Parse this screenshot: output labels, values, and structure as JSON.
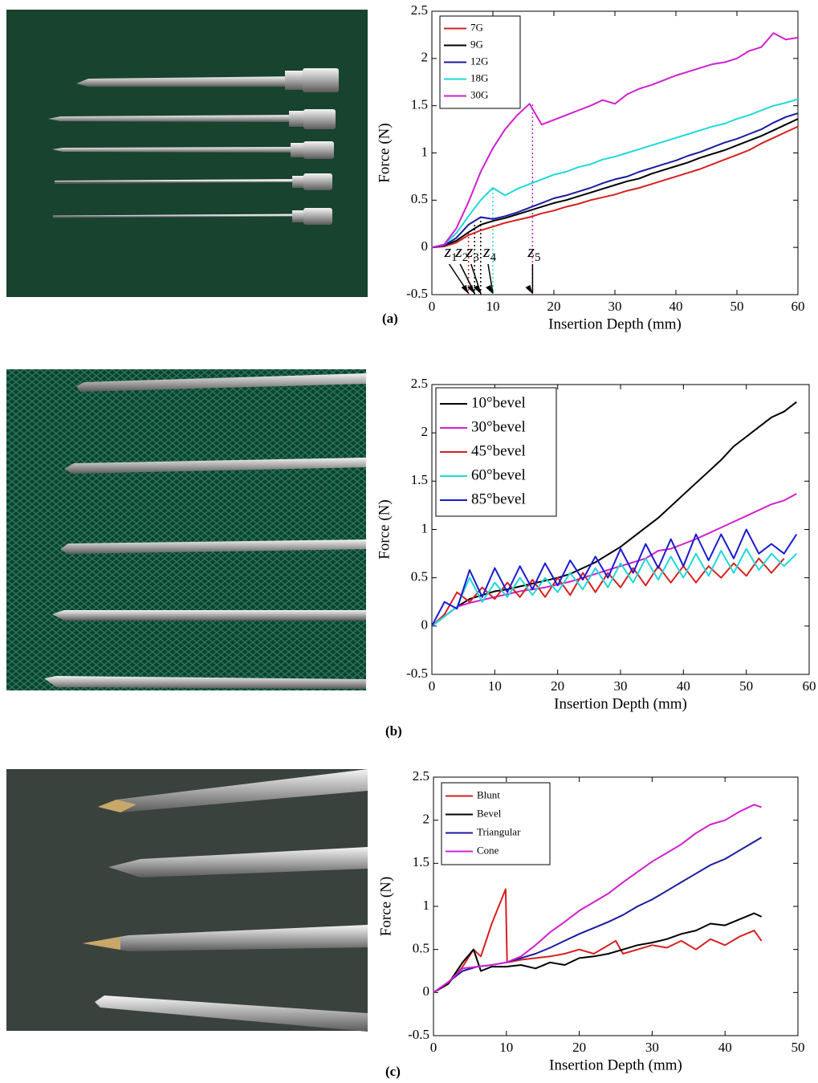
{
  "chart_data": [
    {
      "type": "line",
      "panel_label": "(a)",
      "xlabel": "Insertion Depth (mm)",
      "ylabel": "Force (N)",
      "xlim": [
        0,
        60
      ],
      "ylim": [
        -0.5,
        2.5
      ],
      "xticks": [
        0,
        10,
        20,
        30,
        40,
        50,
        60
      ],
      "yticks": [
        -0.5,
        0,
        0.5,
        1,
        1.5,
        2,
        2.5
      ],
      "legend": "upper left",
      "x": [
        0,
        2,
        4,
        6,
        8,
        10,
        12,
        14,
        16,
        18,
        20,
        22,
        24,
        26,
        28,
        30,
        32,
        34,
        36,
        38,
        40,
        42,
        44,
        46,
        48,
        50,
        52,
        54,
        56,
        58,
        60
      ],
      "series": [
        {
          "name": "7G",
          "color": "#d62020",
          "values": [
            0,
            0.01,
            0.05,
            0.13,
            0.18,
            0.22,
            0.26,
            0.29,
            0.32,
            0.36,
            0.39,
            0.43,
            0.46,
            0.5,
            0.53,
            0.56,
            0.6,
            0.63,
            0.67,
            0.71,
            0.75,
            0.79,
            0.83,
            0.88,
            0.93,
            0.98,
            1.03,
            1.1,
            1.16,
            1.22,
            1.28
          ]
        },
        {
          "name": "9G",
          "color": "#000000",
          "values": [
            0,
            0.02,
            0.07,
            0.16,
            0.24,
            0.28,
            0.31,
            0.35,
            0.39,
            0.43,
            0.47,
            0.5,
            0.54,
            0.58,
            0.62,
            0.66,
            0.7,
            0.73,
            0.78,
            0.82,
            0.86,
            0.9,
            0.95,
            0.99,
            1.03,
            1.08,
            1.13,
            1.18,
            1.24,
            1.3,
            1.36
          ]
        },
        {
          "name": "12G",
          "color": "#1a1aa0",
          "values": [
            0,
            0.02,
            0.1,
            0.24,
            0.32,
            0.3,
            0.33,
            0.37,
            0.42,
            0.47,
            0.52,
            0.55,
            0.59,
            0.63,
            0.68,
            0.72,
            0.75,
            0.8,
            0.84,
            0.88,
            0.92,
            0.97,
            1.01,
            1.06,
            1.11,
            1.15,
            1.2,
            1.25,
            1.32,
            1.38,
            1.42
          ]
        },
        {
          "name": "18G",
          "color": "#20d8d8",
          "values": [
            0,
            0.03,
            0.15,
            0.33,
            0.5,
            0.63,
            0.55,
            0.62,
            0.67,
            0.72,
            0.77,
            0.8,
            0.85,
            0.88,
            0.93,
            0.96,
            1.0,
            1.04,
            1.08,
            1.12,
            1.16,
            1.2,
            1.24,
            1.28,
            1.31,
            1.36,
            1.4,
            1.45,
            1.5,
            1.53,
            1.57
          ]
        },
        {
          "name": "30G",
          "color": "#d020d0",
          "values": [
            0,
            0.03,
            0.2,
            0.48,
            0.8,
            1.05,
            1.25,
            1.4,
            1.52,
            1.3,
            1.35,
            1.4,
            1.45,
            1.5,
            1.56,
            1.52,
            1.62,
            1.68,
            1.72,
            1.77,
            1.82,
            1.86,
            1.9,
            1.94,
            1.96,
            2.0,
            2.08,
            2.12,
            2.27,
            2.2,
            2.22
          ]
        }
      ],
      "markers": [
        {
          "label": "z",
          "subscript": "1",
          "x": 6,
          "y": 0.15,
          "color": "#d62020"
        },
        {
          "label": "z",
          "subscript": "2",
          "x": 7,
          "y": 0.25,
          "color": "#000000"
        },
        {
          "label": "z",
          "subscript": "3",
          "x": 8,
          "y": 0.35,
          "color": "#000000"
        },
        {
          "label": "z",
          "subscript": "4",
          "x": 10,
          "y": 0.63,
          "color": "#20d8d8"
        },
        {
          "label": "z",
          "subscript": "5",
          "x": 16.5,
          "y": 1.52,
          "color": "#d020d0"
        }
      ]
    },
    {
      "type": "line",
      "panel_label": "(b)",
      "xlabel": "Insertion Depth (mm)",
      "ylabel": "Force (N)",
      "xlim": [
        0,
        60
      ],
      "ylim": [
        -0.5,
        2.5
      ],
      "xticks": [
        0,
        10,
        20,
        30,
        40,
        50,
        60
      ],
      "yticks": [
        -0.5,
        0,
        0.5,
        1,
        1.5,
        2,
        2.5
      ],
      "legend": "upper left",
      "x": [
        0,
        2,
        4,
        6,
        8,
        10,
        12,
        14,
        16,
        18,
        20,
        22,
        24,
        26,
        28,
        30,
        32,
        34,
        36,
        38,
        40,
        42,
        44,
        46,
        48,
        50,
        52,
        54,
        56,
        58
      ],
      "series": [
        {
          "name": "10°bevel",
          "color": "#000000",
          "values": [
            0,
            0.1,
            0.2,
            0.28,
            0.32,
            0.36,
            0.38,
            0.41,
            0.44,
            0.47,
            0.5,
            0.54,
            0.6,
            0.66,
            0.74,
            0.82,
            0.92,
            1.02,
            1.12,
            1.24,
            1.36,
            1.48,
            1.6,
            1.72,
            1.86,
            1.96,
            2.06,
            2.16,
            2.22,
            2.32
          ]
        },
        {
          "name": "30°bevel",
          "color": "#d020d0",
          "values": [
            0,
            0.1,
            0.2,
            0.24,
            0.27,
            0.3,
            0.33,
            0.36,
            0.38,
            0.4,
            0.43,
            0.46,
            0.5,
            0.54,
            0.58,
            0.62,
            0.66,
            0.7,
            0.78,
            0.8,
            0.85,
            0.9,
            0.96,
            1.02,
            1.08,
            1.14,
            1.2,
            1.26,
            1.3,
            1.37
          ]
        },
        {
          "name": "45°bevel",
          "color": "#d62020",
          "values": [
            0,
            0.12,
            0.35,
            0.25,
            0.4,
            0.28,
            0.45,
            0.3,
            0.48,
            0.3,
            0.5,
            0.32,
            0.55,
            0.35,
            0.55,
            0.4,
            0.6,
            0.42,
            0.62,
            0.45,
            0.62,
            0.45,
            0.62,
            0.5,
            0.65,
            0.52,
            0.7,
            0.55,
            0.7,
            null
          ]
        },
        {
          "name": "60°bevel",
          "color": "#20d8d8",
          "values": [
            0,
            0.1,
            0.2,
            0.5,
            0.25,
            0.45,
            0.3,
            0.5,
            0.32,
            0.5,
            0.35,
            0.55,
            0.38,
            0.6,
            0.4,
            0.65,
            0.45,
            0.7,
            0.48,
            0.72,
            0.5,
            0.75,
            0.52,
            0.78,
            0.55,
            0.8,
            0.58,
            0.75,
            0.62,
            0.75
          ]
        },
        {
          "name": "85°bevel",
          "color": "#1a1ad0",
          "values": [
            0,
            0.25,
            0.18,
            0.58,
            0.3,
            0.6,
            0.35,
            0.62,
            0.38,
            0.65,
            0.42,
            0.68,
            0.48,
            0.72,
            0.5,
            0.8,
            0.55,
            0.85,
            0.6,
            0.9,
            0.62,
            0.95,
            0.68,
            0.95,
            0.7,
            1.0,
            0.75,
            0.85,
            0.75,
            0.95
          ]
        }
      ]
    },
    {
      "type": "line",
      "panel_label": "(c)",
      "xlabel": "Insertion Depth (mm)",
      "ylabel": "Force (N)",
      "xlim": [
        0,
        50
      ],
      "ylim": [
        -0.5,
        2.5
      ],
      "xticks": [
        0,
        10,
        20,
        30,
        40,
        50
      ],
      "yticks": [
        -0.5,
        0,
        0.5,
        1,
        1.5,
        2,
        2.5
      ],
      "legend": "upper left",
      "series": [
        {
          "name": "Blunt",
          "color": "#d62020",
          "x": [
            0,
            2,
            4,
            5.5,
            6.5,
            8,
            9.9,
            10.1,
            12,
            14,
            16,
            18,
            20,
            22,
            24,
            25,
            26,
            28,
            30,
            32,
            34,
            36,
            38,
            40,
            42,
            44,
            45
          ],
          "values": [
            0,
            0.1,
            0.3,
            0.5,
            0.42,
            0.8,
            1.2,
            0.35,
            0.38,
            0.4,
            0.42,
            0.45,
            0.5,
            0.45,
            0.55,
            0.6,
            0.45,
            0.5,
            0.55,
            0.52,
            0.6,
            0.5,
            0.62,
            0.55,
            0.65,
            0.72,
            0.6
          ]
        },
        {
          "name": "Bevel",
          "color": "#000000",
          "x": [
            0,
            2,
            4,
            5.5,
            6.5,
            8,
            10,
            12,
            14,
            16,
            18,
            20,
            22,
            24,
            26,
            28,
            30,
            32,
            34,
            36,
            38,
            40,
            42,
            44,
            45
          ],
          "values": [
            0,
            0.1,
            0.35,
            0.5,
            0.25,
            0.3,
            0.3,
            0.32,
            0.28,
            0.35,
            0.32,
            0.4,
            0.42,
            0.45,
            0.5,
            0.55,
            0.58,
            0.62,
            0.68,
            0.72,
            0.8,
            0.78,
            0.85,
            0.92,
            0.88
          ]
        },
        {
          "name": "Triangular",
          "color": "#1a1aa0",
          "x": [
            0,
            2,
            4,
            6,
            8,
            10,
            12,
            14,
            16,
            18,
            20,
            22,
            24,
            26,
            28,
            30,
            32,
            34,
            36,
            38,
            40,
            42,
            44,
            45
          ],
          "values": [
            0,
            0.12,
            0.25,
            0.3,
            0.32,
            0.35,
            0.4,
            0.45,
            0.52,
            0.6,
            0.68,
            0.75,
            0.82,
            0.9,
            1.0,
            1.08,
            1.18,
            1.28,
            1.38,
            1.48,
            1.55,
            1.65,
            1.75,
            1.8
          ]
        },
        {
          "name": "Cone",
          "color": "#d020d0",
          "x": [
            0,
            2,
            4,
            6,
            8,
            10,
            12,
            14,
            16,
            18,
            20,
            22,
            24,
            26,
            28,
            30,
            32,
            34,
            36,
            38,
            40,
            42,
            44,
            45
          ],
          "values": [
            0,
            0.12,
            0.28,
            0.3,
            0.32,
            0.35,
            0.42,
            0.55,
            0.7,
            0.82,
            0.95,
            1.05,
            1.15,
            1.28,
            1.4,
            1.52,
            1.62,
            1.72,
            1.85,
            1.95,
            2.0,
            2.1,
            2.18,
            2.15
          ]
        }
      ]
    }
  ]
}
